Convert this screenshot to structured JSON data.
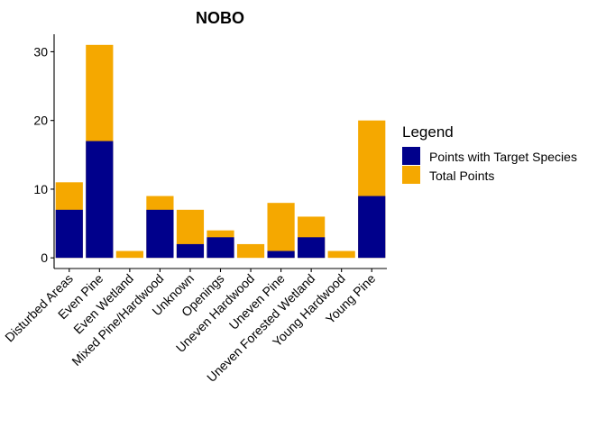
{
  "chart_data": {
    "type": "bar",
    "title": "NOBO",
    "xlabel": "",
    "ylabel": "",
    "ylim": [
      -1.55,
      32.55
    ],
    "yticks": [
      0,
      10,
      20,
      30
    ],
    "categories": [
      "Disturbed Areas",
      "Even Pine",
      "Even Wetland",
      "Mixed Pine/Hardwood",
      "Unknown",
      "Openings",
      "Uneven Hardwood",
      "Uneven Pine",
      "Uneven Forested Wetland",
      "Young Hardwood",
      "Young Pine"
    ],
    "series": [
      {
        "name": "Total Points",
        "color": "#F5A800",
        "values": [
          11,
          31,
          1,
          9,
          7,
          4,
          2,
          8,
          6,
          1,
          20
        ]
      },
      {
        "name": "Points with Target Species",
        "color": "#00008B",
        "values": [
          7,
          17,
          0,
          7,
          2,
          3,
          0,
          1,
          3,
          0,
          9
        ]
      }
    ],
    "legend": {
      "title": "Legend",
      "position": "right",
      "entries": [
        "Points with Target Species",
        "Total Points"
      ]
    },
    "grid": false
  }
}
